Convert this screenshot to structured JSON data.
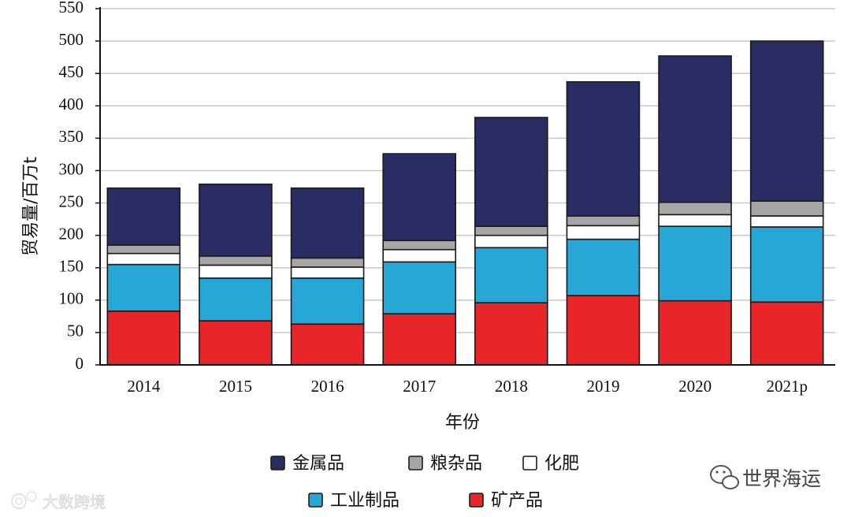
{
  "chart_data": {
    "type": "bar",
    "stacked": true,
    "title": "",
    "xlabel": "年份",
    "ylabel": "贸易量/百万t",
    "ylim": [
      0,
      550
    ],
    "yticks": [
      0,
      50,
      100,
      150,
      200,
      250,
      300,
      350,
      400,
      450,
      500,
      550
    ],
    "grid": true,
    "legend_position": "bottom",
    "categories": [
      "2014",
      "2015",
      "2016",
      "2017",
      "2018",
      "2019",
      "2020",
      "2021p"
    ],
    "series": [
      {
        "name": "矿产品",
        "color": "#e8262a",
        "values": [
          83,
          68,
          63,
          79,
          96,
          107,
          99,
          97
        ]
      },
      {
        "name": "工业制品",
        "color": "#27a7d6",
        "values": [
          72,
          66,
          71,
          80,
          85,
          87,
          115,
          116
        ]
      },
      {
        "name": "化肥",
        "color": "#ffffff",
        "values": [
          17,
          20,
          17,
          19,
          19,
          21,
          18,
          17
        ]
      },
      {
        "name": "粮杂品",
        "color": "#a6a6a6",
        "values": [
          13,
          14,
          14,
          14,
          14,
          15,
          19,
          23
        ]
      },
      {
        "name": "金属品",
        "color": "#2a2d63",
        "values": [
          88,
          111,
          108,
          134,
          168,
          207,
          226,
          247
        ]
      }
    ],
    "legend_order": [
      "金属品",
      "粮杂品",
      "化肥",
      "工业制品",
      "矿产品"
    ]
  },
  "watermarks": {
    "left": "大数跨境",
    "right": "世界海运"
  },
  "colors": {
    "axis": "#111111",
    "grid": "#c8c8c8",
    "bar_outline": "#1a1a1a"
  }
}
